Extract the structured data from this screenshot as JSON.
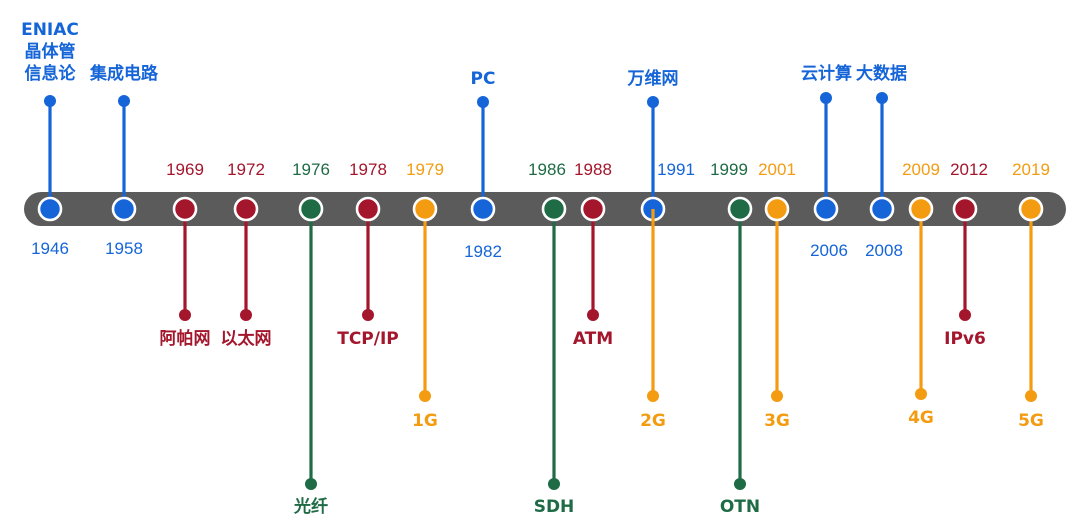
{
  "colors": {
    "computing": "#1565d8",
    "network": "#a3162c",
    "optical": "#1f6b45",
    "mobile": "#f39c12",
    "bar": "#5b5b5b",
    "node_ring": "#ffffff"
  },
  "events": [
    {
      "year": "1946",
      "cat": "computing",
      "label": [
        "ENIAC",
        "晶体管",
        "信息论"
      ]
    },
    {
      "year": "1958",
      "cat": "computing",
      "label": [
        "集成电路"
      ]
    },
    {
      "year": "1969",
      "cat": "network",
      "label": [
        "阿帕网"
      ]
    },
    {
      "year": "1972",
      "cat": "network",
      "label": [
        "以太网"
      ]
    },
    {
      "year": "1976",
      "cat": "optical",
      "label": [
        "光纤"
      ]
    },
    {
      "year": "1978",
      "cat": "network",
      "label": [
        "TCP/IP"
      ]
    },
    {
      "year": "1979",
      "cat": "mobile",
      "label": [
        "1G"
      ]
    },
    {
      "year": "1982",
      "cat": "computing",
      "label": [
        "PC"
      ]
    },
    {
      "year": "1986",
      "cat": "optical",
      "label": [
        "SDH"
      ]
    },
    {
      "year": "1988",
      "cat": "network",
      "label": [
        "ATM"
      ]
    },
    {
      "year": "1991",
      "cat": "computing",
      "label": [
        "万维网"
      ]
    },
    {
      "year": "1999",
      "cat": "optical",
      "label": [
        "OTN"
      ]
    },
    {
      "year": "2001",
      "cat": "mobile",
      "label": [
        "3G"
      ]
    },
    {
      "year": "2006",
      "cat": "computing",
      "label": [
        "云计算"
      ]
    },
    {
      "year": "2008",
      "cat": "computing",
      "label": [
        "大数据"
      ]
    },
    {
      "year": "2009",
      "cat": "mobile",
      "label": [
        "4G"
      ]
    },
    {
      "year": "2012",
      "cat": "network",
      "label": [
        "IPv6"
      ]
    },
    {
      "year": "2019",
      "cat": "mobile",
      "label": [
        "5G"
      ]
    },
    {
      "year": "",
      "cat": "mobile",
      "label": [
        "2G"
      ]
    }
  ]
}
